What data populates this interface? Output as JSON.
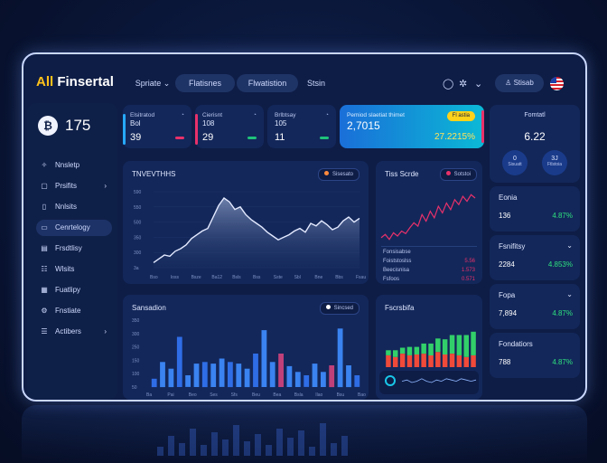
{
  "brand": {
    "part1": "All",
    "part2": " Finsertal"
  },
  "nav": {
    "tabs": [
      {
        "label": "Spriate",
        "dropdown": true
      },
      {
        "label": "Flatisnes"
      },
      {
        "label": "Flwatistion"
      },
      {
        "label": "Stsin"
      }
    ],
    "user_label": "Stisab",
    "icons": [
      "globe-icon",
      "settings-icon"
    ]
  },
  "sidebar": {
    "balance_icon": "₿",
    "balance_value": "175",
    "items": [
      {
        "label": "Nnsletp",
        "icon": "market-icon"
      },
      {
        "label": "Prsifits",
        "icon": "profits-icon",
        "chevron": true
      },
      {
        "label": "Nnlsits",
        "icon": "doc-icon"
      },
      {
        "label": "Cenrtelogy",
        "icon": "wallet-icon",
        "active": true
      },
      {
        "label": "Frsdtlisy",
        "icon": "cards-icon"
      },
      {
        "label": "Wlsits",
        "icon": "list-icon"
      },
      {
        "label": "Fuatlipy",
        "icon": "chart-icon"
      },
      {
        "label": "Fnstiate",
        "icon": "settings-icon"
      },
      {
        "label": "Actibers",
        "icon": "users-icon",
        "chevron": true
      }
    ]
  },
  "stats": [
    {
      "label": "Elsitratod",
      "sub": "Bol",
      "value": "39",
      "accent": "#27a9ff"
    },
    {
      "label": "Cierisnt",
      "sub": "108",
      "value": "29",
      "accent": "#e8316a"
    },
    {
      "label": "Brlbtsay",
      "sub": "105",
      "value": "11",
      "accent": "#2fe07e"
    }
  ],
  "highlight": {
    "label": "Pemiod slaetiat thimet",
    "value": "2,7015",
    "badge": "Fl astia",
    "value2": "27.2215%"
  },
  "right_top": {
    "title": "Fomtatl",
    "value": "6.22",
    "circle1": {
      "value": "0",
      "label": "Sisuatt"
    },
    "circle2": {
      "value": "3J",
      "label": "Ftlstoia"
    }
  },
  "right_cards": [
    {
      "title": "Eonia",
      "left": "136",
      "right": "4.87%"
    },
    {
      "title": "Fsnifitsy",
      "left": "2284",
      "right": "4.853%",
      "dropdown": true
    },
    {
      "title": "Fopa",
      "left": "7,894",
      "right": "4.87%",
      "dropdown": true
    },
    {
      "title": "Fondatiors",
      "left": "788",
      "right": "4.87%"
    }
  ],
  "colors": {
    "accent_blue": "#27a9ff",
    "accent_red": "#e8316a",
    "accent_green": "#2fe07e",
    "badge_yellow": "#ffd21a"
  },
  "main_chart": {
    "title": "TNVEVTHHS",
    "legend": "Sisesato",
    "chart_data": {
      "type": "area",
      "y_ticks": [
        "590",
        "550",
        "500",
        "350",
        "300",
        "3a"
      ],
      "x_ticks": [
        "Bso",
        "Ioss",
        "Bsze",
        "Ba12",
        "Bsls",
        "Bss",
        "Sste",
        "Sbl",
        "Bne",
        "Bbs",
        "Fsau"
      ],
      "values": [
        8,
        14,
        20,
        18,
        26,
        30,
        36,
        46,
        52,
        58,
        62,
        80,
        98,
        110,
        104,
        92,
        96,
        84,
        76,
        70,
        64,
        56,
        50,
        44,
        48,
        52,
        58,
        62,
        56,
        70,
        66,
        74,
        68,
        60,
        64,
        74,
        80,
        72,
        78
      ],
      "ylim": [
        0,
        120
      ]
    }
  },
  "small_chart": {
    "title": "Tiss Scrde",
    "legend": "Sotstoi",
    "chart_data": {
      "type": "line",
      "values": [
        10,
        14,
        8,
        16,
        12,
        18,
        15,
        22,
        28,
        24,
        38,
        30,
        42,
        34,
        48,
        40,
        52,
        44,
        56,
        50,
        60,
        54,
        62,
        58
      ],
      "ylim": [
        0,
        70
      ]
    },
    "rows": [
      {
        "label": "Fonsisabse",
        "value": ""
      },
      {
        "label": "Foiststoslss",
        "value": "5.56"
      },
      {
        "label": "Beecisnisa",
        "value": "1.573"
      },
      {
        "label": "Fsfoos",
        "value": "0.571"
      }
    ]
  },
  "bar_chart": {
    "title": "Sansadion",
    "legend": "Sincsed",
    "chart_data": {
      "type": "bar",
      "y_ticks": [
        "350",
        "300",
        "250",
        "150",
        "100",
        "50"
      ],
      "x_ticks": [
        "Ba",
        "Pai",
        "Beo",
        "Ses",
        "Sfs",
        "Beu",
        "Bea",
        "Bsla",
        "Ilao",
        "Bsu",
        "Bao"
      ],
      "values": [
        10,
        30,
        22,
        60,
        14,
        28,
        30,
        28,
        34,
        30,
        28,
        22,
        40,
        68,
        30,
        40,
        25,
        18,
        14,
        28,
        18,
        26,
        70,
        26,
        14
      ],
      "ylim": [
        0,
        80
      ]
    }
  },
  "stacked_chart": {
    "title": "Fscrsbifa",
    "chart_data": {
      "type": "bar",
      "series": [
        {
          "name": "Fscrsbifa",
          "values": [
            14,
            12,
            16,
            14,
            15,
            16,
            14,
            18,
            15,
            16,
            14,
            12,
            14
          ]
        },
        {
          "name": "",
          "values": [
            6,
            8,
            7,
            10,
            9,
            12,
            14,
            16,
            18,
            22,
            24,
            26,
            28
          ]
        }
      ],
      "ylim": [
        0,
        60
      ]
    },
    "mini_line": {
      "type": "line",
      "values": [
        6,
        7,
        5,
        6,
        8,
        6,
        5,
        7,
        6,
        8,
        7,
        6,
        8,
        7,
        6,
        7
      ]
    }
  }
}
